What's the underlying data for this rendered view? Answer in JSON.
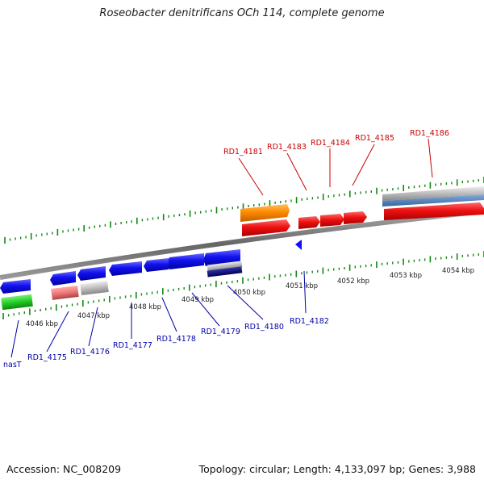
{
  "title": "Roseobacter denitrificans OCh 114, complete genome",
  "footer": {
    "accession": "Accession: NC_008209",
    "topology": "Topology: circular; Length: 4,133,097 bp; Genes: 3,988"
  },
  "colors": {
    "forward_label": "#cc0000",
    "reverse_label": "#0000aa",
    "backbone": "#777777",
    "tick": "#118811",
    "red": "#ee1111",
    "orange": "#ff8800",
    "blue": "#1111ee",
    "gray": "#bbbbbb",
    "pink": "#ee7777",
    "green": "#22cc22",
    "navy": "#000077",
    "steel": "#4477bb"
  },
  "scale_labels": [
    "4046 kbp",
    "4047 kbp",
    "4048 kbp",
    "4049 kbp",
    "4050 kbp",
    "4051 kbp",
    "4052 kbp",
    "4053 kbp",
    "4054 kbp"
  ],
  "forward_genes": [
    {
      "label": "RD1_4181",
      "color": "red"
    },
    {
      "label": "RD1_4183",
      "color": "red"
    },
    {
      "label": "RD1_4184",
      "color": "red"
    },
    {
      "label": "RD1_4185",
      "color": "red"
    },
    {
      "label": "RD1_4186",
      "color": "red"
    }
  ],
  "reverse_genes": [
    {
      "label": "nasT",
      "color": "green"
    },
    {
      "label": "RD1_4175",
      "color": "pink"
    },
    {
      "label": "RD1_4176",
      "color": "gray"
    },
    {
      "label": "RD1_4177",
      "color": "blue"
    },
    {
      "label": "RD1_4178",
      "color": "blue"
    },
    {
      "label": "RD1_4179",
      "color": "blue"
    },
    {
      "label": "RD1_4180",
      "color": "blue"
    },
    {
      "label": "RD1_4182",
      "color": "blue"
    }
  ]
}
